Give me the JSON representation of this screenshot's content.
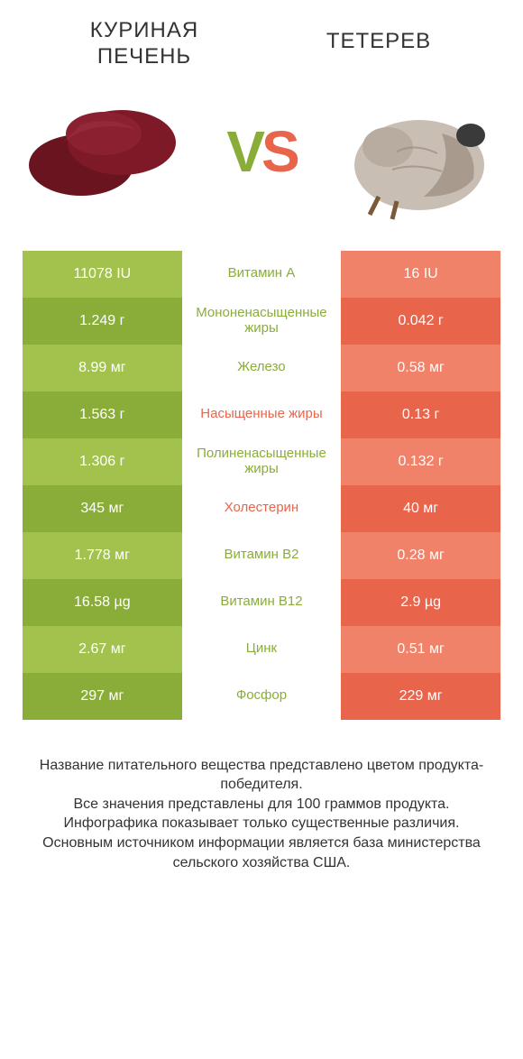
{
  "header": {
    "left_title_line1": "КУРИНАЯ",
    "left_title_line2": "ПЕЧЕНЬ",
    "right_title": "ТЕТЕРЕВ",
    "vs_v": "V",
    "vs_s": "S"
  },
  "colors": {
    "left_odd": "#a3c24d",
    "left_even": "#8aad3a",
    "right_odd": "#ef8269",
    "right_even": "#e8644b",
    "green_text": "#8aad3a",
    "orange_text": "#e8644b"
  },
  "rows": [
    {
      "left": "11078 IU",
      "name": "Витамин A",
      "right": "16 IU",
      "winner": "green"
    },
    {
      "left": "1.249 г",
      "name": "Мононенасыщенные жиры",
      "right": "0.042 г",
      "winner": "green"
    },
    {
      "left": "8.99 мг",
      "name": "Железо",
      "right": "0.58 мг",
      "winner": "green"
    },
    {
      "left": "1.563 г",
      "name": "Насыщенные жиры",
      "right": "0.13 г",
      "winner": "orange"
    },
    {
      "left": "1.306 г",
      "name": "Полиненасыщенные жиры",
      "right": "0.132 г",
      "winner": "green"
    },
    {
      "left": "345 мг",
      "name": "Холестерин",
      "right": "40 мг",
      "winner": "orange"
    },
    {
      "left": "1.778 мг",
      "name": "Витамин B2",
      "right": "0.28 мг",
      "winner": "green"
    },
    {
      "left": "16.58 µg",
      "name": "Витамин B12",
      "right": "2.9 µg",
      "winner": "green"
    },
    {
      "left": "2.67 мг",
      "name": "Цинк",
      "right": "0.51 мг",
      "winner": "green"
    },
    {
      "left": "297 мг",
      "name": "Фосфор",
      "right": "229 мг",
      "winner": "green"
    }
  ],
  "footer": {
    "l1": "Название питательного вещества представлено цветом продукта-победителя.",
    "l2": "Все значения представлены для 100 граммов продукта.",
    "l3": "Инфографика показывает только существенные различия.",
    "l4": "Основным источником информации является база министерства сельского хозяйства США."
  }
}
